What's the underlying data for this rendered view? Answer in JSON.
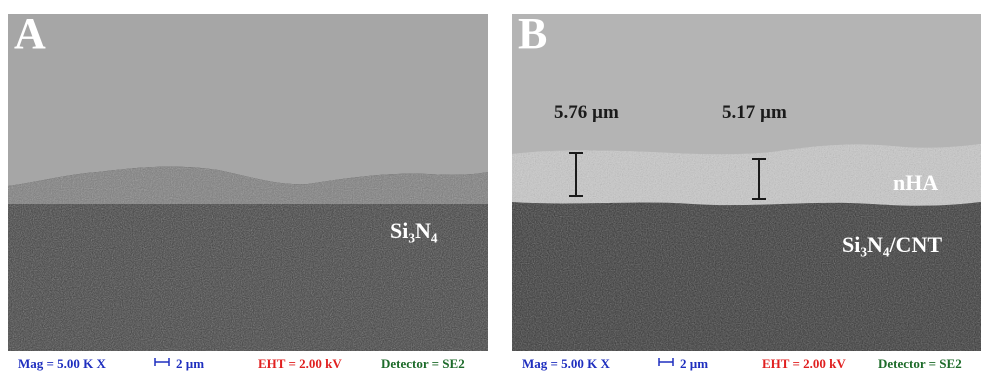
{
  "panels": [
    {
      "id": "A",
      "letter": "A",
      "layer_label_main": "Si",
      "layer_label_sub1": "3",
      "layer_label_mid": "N",
      "layer_label_sub2": "4",
      "footer": {
        "mag": "Mag = 5.00 K X",
        "scale": "2 µm",
        "eht": "EHT = 2.00 kV",
        "detector": "Detector = SE2"
      }
    },
    {
      "id": "B",
      "letter": "B",
      "thickness_1": "5.76 µm",
      "thickness_2": "5.17 µm",
      "coating_label": "nHA",
      "substrate_main": "Si",
      "substrate_sub1": "3",
      "substrate_mid": "N",
      "substrate_sub2": "4",
      "substrate_tail": "/CNT",
      "footer": {
        "mag": "Mag = 5.00 K X",
        "scale": "2 µm",
        "eht": "EHT = 2.00 kV",
        "detector": "Detector = SE2"
      }
    }
  ],
  "colors": {
    "mag_text": "#1f2fbf",
    "eht_text": "#e02020",
    "detector_text": "#1d6b2a"
  }
}
